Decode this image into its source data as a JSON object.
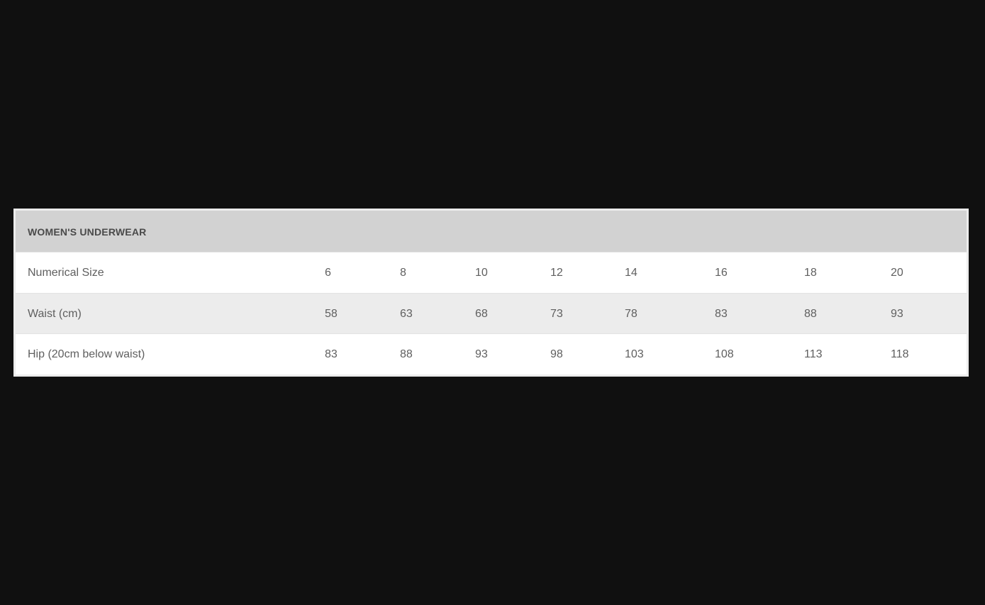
{
  "table": {
    "title": "WOMEN'S UNDERWEAR",
    "rows": [
      {
        "label": "Numerical Size",
        "values": [
          "6",
          "8",
          "10",
          "12",
          "14",
          "16",
          "18",
          "20"
        ]
      },
      {
        "label": "Waist (cm)",
        "values": [
          "58",
          "63",
          "68",
          "73",
          "78",
          "83",
          "88",
          "93"
        ]
      },
      {
        "label": "Hip (20cm below waist)",
        "values": [
          "83",
          "88",
          "93",
          "98",
          "103",
          "108",
          "113",
          "118"
        ]
      }
    ]
  }
}
